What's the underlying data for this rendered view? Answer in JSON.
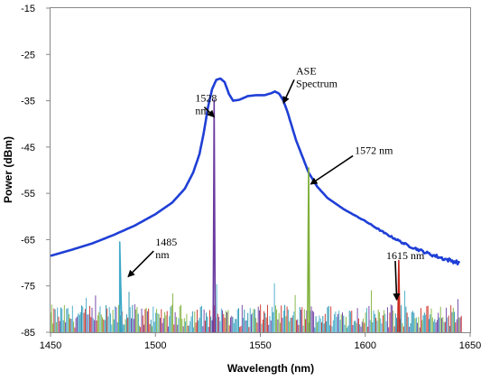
{
  "chart_data": {
    "type": "line",
    "title": "",
    "xlabel": "Wavelength (nm)",
    "ylabel": "Power (dBm)",
    "xlim": [
      1450,
      1650
    ],
    "ylim": [
      -85,
      -15
    ],
    "xticks": [
      1450,
      1500,
      1550,
      1600,
      1650
    ],
    "yticks": [
      -85,
      -75,
      -65,
      -55,
      -45,
      -35,
      -25,
      -15
    ],
    "grid": false,
    "legend": "none",
    "series": [
      {
        "color": "#1f3fd6",
        "points": [
          [
            1450,
            -68.5
          ],
          [
            1460,
            -67.2
          ],
          [
            1470,
            -65.8
          ],
          [
            1480,
            -64.0
          ],
          [
            1490,
            -62.0
          ],
          [
            1500,
            -59.5
          ],
          [
            1508,
            -57.0
          ],
          [
            1514,
            -54.0
          ],
          [
            1518,
            -50.5
          ],
          [
            1521,
            -46.5
          ],
          [
            1523,
            -42.0
          ],
          [
            1525,
            -36.5
          ],
          [
            1527,
            -32.5
          ],
          [
            1529,
            -30.5
          ],
          [
            1531,
            -30.2
          ],
          [
            1533,
            -31.0
          ],
          [
            1535,
            -33.5
          ],
          [
            1537,
            -35.0
          ],
          [
            1540,
            -34.8
          ],
          [
            1544,
            -34.0
          ],
          [
            1548,
            -33.8
          ],
          [
            1552,
            -33.8
          ],
          [
            1555,
            -33.4
          ],
          [
            1557,
            -33.0
          ],
          [
            1559,
            -33.5
          ],
          [
            1561,
            -35.0
          ],
          [
            1563,
            -37.5
          ],
          [
            1565,
            -40.5
          ],
          [
            1567,
            -43.5
          ],
          [
            1570,
            -47.0
          ],
          [
            1573,
            -50.5
          ],
          [
            1577,
            -53.5
          ],
          [
            1582,
            -56.0
          ],
          [
            1590,
            -58.5
          ],
          [
            1600,
            -61.0
          ],
          [
            1610,
            -63.8
          ],
          [
            1620,
            -66.2
          ],
          [
            1630,
            -68.0
          ],
          [
            1638,
            -69.2
          ],
          [
            1645,
            -70.0
          ]
        ]
      },
      {
        "color": "#3fa9c8",
        "points": [
          [
            1483,
            -85
          ],
          [
            1483,
            -65.5
          ],
          [
            1484,
            -85
          ]
        ]
      },
      {
        "color": "#6a3aa0",
        "points": [
          [
            1527.5,
            -85
          ],
          [
            1528,
            -34.8
          ],
          [
            1528.5,
            -85
          ]
        ]
      },
      {
        "color": "#7fb03a",
        "points": [
          [
            1572.5,
            -85
          ],
          [
            1573,
            -49.5
          ],
          [
            1573.5,
            -85
          ]
        ]
      },
      {
        "color": "#c8281e",
        "points": [
          [
            1615.5,
            -85
          ],
          [
            1616,
            -69.5
          ],
          [
            1616.5,
            -85
          ]
        ]
      }
    ],
    "noise_colors": [
      "#3fa9c8",
      "#c8281e",
      "#1a8ca8",
      "#7fb03a",
      "#6a3aa0"
    ],
    "annotations": [
      {
        "lines": [
          "1528",
          "nm"
        ],
        "x": 1519,
        "y": -35.2,
        "ax": 1528,
        "ay": -38.5
      },
      {
        "lines": [
          "ASE",
          "Spectrum"
        ],
        "x": 1567,
        "y": -29.3,
        "ax": 1561,
        "ay": -35.5
      },
      {
        "lines": [
          "1572  nm"
        ],
        "x": 1595,
        "y": -46.5,
        "ax": 1574,
        "ay": -53.0
      },
      {
        "lines": [
          "1485",
          "nm"
        ],
        "x": 1500,
        "y": -66.3,
        "ax": 1487,
        "ay": -73.0
      },
      {
        "lines": [
          "1615  nm"
        ],
        "x": 1610,
        "y": -69.2,
        "ax": 1615,
        "ay": -78.0
      }
    ]
  }
}
